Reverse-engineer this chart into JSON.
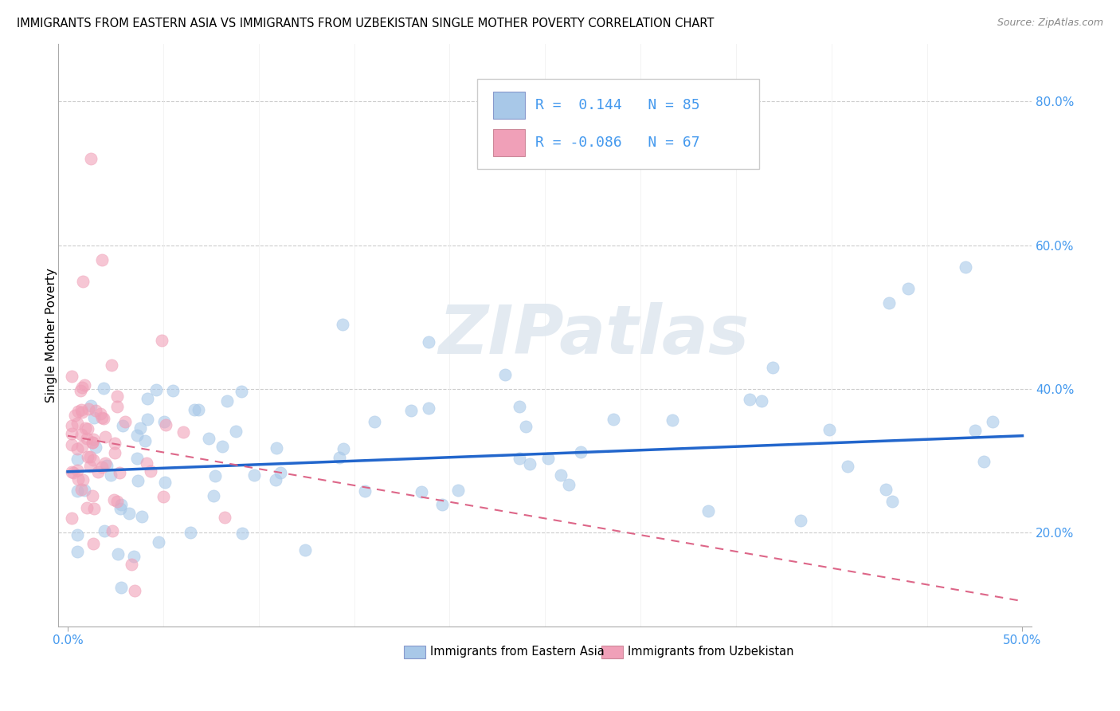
{
  "title": "IMMIGRANTS FROM EASTERN ASIA VS IMMIGRANTS FROM UZBEKISTAN SINGLE MOTHER POVERTY CORRELATION CHART",
  "source": "Source: ZipAtlas.com",
  "ylabel": "Single Mother Poverty",
  "xlim": [
    0.0,
    0.5
  ],
  "ylim": [
    0.07,
    0.88
  ],
  "legend1_R": "0.144",
  "legend1_N": "85",
  "legend2_R": "-0.086",
  "legend2_N": "67",
  "color_blue": "#A8C8E8",
  "color_pink": "#F0A0B8",
  "line_blue": "#2266CC",
  "line_pink": "#DD6688",
  "watermark": "ZIPatlas",
  "title_fontsize": 10.5,
  "source_fontsize": 9,
  "tick_color": "#4499EE",
  "grid_color": "#CCCCCC"
}
